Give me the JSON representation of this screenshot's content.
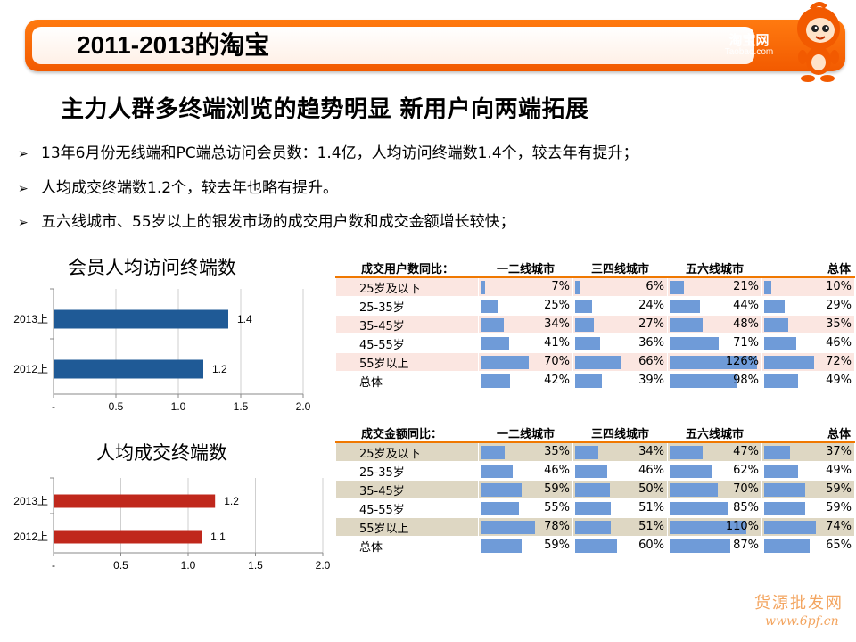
{
  "header": {
    "title": "2011-2013的淘宝",
    "logo_text": "淘宝网",
    "logo_sub": "Taobao.com"
  },
  "subtitle": "主力人群多终端浏览的趋势明显  新用户向两端拓展",
  "bullets": [
    "13年6月份无线端和PC端总访问会员数：1.4亿，人均访问终端数1.4个，较去年有提升；",
    "人均成交终端数1.2个，较去年也略有提升。",
    "五六线城市、55岁以上的银发市场的成交用户数和成交金额增长较快；"
  ],
  "chart_data": [
    {
      "type": "bar",
      "orientation": "horizontal",
      "title": "会员人均访问终端数",
      "categories": [
        "2013上",
        "2012上"
      ],
      "values": [
        1.4,
        1.2
      ],
      "value_labels": [
        "1.4",
        "1.2"
      ],
      "xlim": [
        0,
        2.0
      ],
      "x_ticks": [
        "-",
        "0.5",
        "1.0",
        "1.5",
        "2.0"
      ],
      "color": "#1f5a96"
    },
    {
      "type": "bar",
      "orientation": "horizontal",
      "title": "人均成交终端数",
      "categories": [
        "2013上",
        "2012上"
      ],
      "values": [
        1.2,
        1.1
      ],
      "value_labels": [
        "1.2",
        "1.1"
      ],
      "xlim": [
        0,
        2.0
      ],
      "x_ticks": [
        "-",
        "0.5",
        "1.0",
        "1.5",
        "2.0"
      ],
      "color": "#c0281c"
    },
    {
      "type": "table",
      "title": "成交用户数同比：",
      "columns": [
        "一二线城市",
        "三四线城市",
        "五六线城市",
        "总体"
      ],
      "rows": [
        {
          "label": "25岁及以下",
          "values": [
            7,
            6,
            21,
            10
          ]
        },
        {
          "label": "25-35岁",
          "values": [
            25,
            24,
            44,
            29
          ]
        },
        {
          "label": "35-45岁",
          "values": [
            34,
            27,
            48,
            35
          ]
        },
        {
          "label": "45-55岁",
          "values": [
            41,
            36,
            71,
            46
          ]
        },
        {
          "label": "55岁以上",
          "values": [
            70,
            66,
            126,
            72
          ]
        },
        {
          "label": "总体",
          "values": [
            42,
            39,
            98,
            49
          ]
        }
      ],
      "unit": "%",
      "bar_color": "#6f9bd8"
    },
    {
      "type": "table",
      "title": "成交金额同比：",
      "columns": [
        "一二线城市",
        "三四线城市",
        "五六线城市",
        "总体"
      ],
      "rows": [
        {
          "label": "25岁及以下",
          "values": [
            35,
            34,
            47,
            37
          ]
        },
        {
          "label": "25-35岁",
          "values": [
            46,
            46,
            62,
            49
          ]
        },
        {
          "label": "35-45岁",
          "values": [
            59,
            50,
            70,
            59
          ]
        },
        {
          "label": "45-55岁",
          "values": [
            55,
            51,
            85,
            59
          ]
        },
        {
          "label": "55岁以上",
          "values": [
            78,
            51,
            110,
            74
          ]
        },
        {
          "label": "总体",
          "values": [
            59,
            60,
            87,
            65
          ]
        }
      ],
      "unit": "%",
      "bar_color": "#6f9bd8"
    }
  ],
  "watermark": {
    "line1": "货源批发网",
    "line2": "www.6pf.cn"
  },
  "colors": {
    "accent": "#f25a00",
    "bar_blue": "#1f5a96",
    "bar_red": "#c0281c"
  }
}
